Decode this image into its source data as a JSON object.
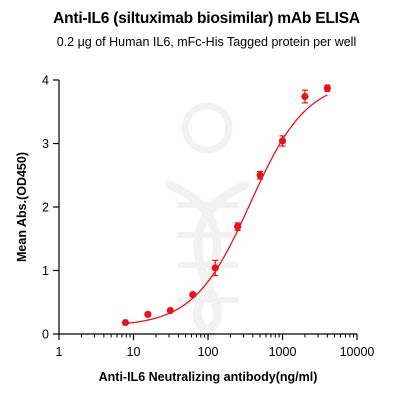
{
  "title": "Anti-IL6 (siltuximab biosimilar) mAb ELISA",
  "subtitle": "0.2 μg of Human IL6, mFc-His Tagged protein per well",
  "colors": {
    "series": "#e8141b",
    "axis": "#000000",
    "watermark": "#f2f2f2"
  },
  "chart_data": {
    "type": "scatter",
    "xlabel": "Anti-IL6 Neutralizing antibody(ng/ml)",
    "ylabel": "Mean Abs.(OD450)",
    "xscale": "log",
    "xlim": [
      1,
      10000
    ],
    "ylim": [
      0,
      4
    ],
    "x_ticks": [
      1,
      10,
      100,
      1000,
      10000
    ],
    "x_tick_labels": [
      "1",
      "10",
      "100",
      "1000",
      "10000"
    ],
    "y_ticks": [
      0,
      1,
      2,
      3,
      4
    ],
    "y_tick_labels": [
      "0",
      "1",
      "2",
      "3",
      "4"
    ],
    "grid": false,
    "series": [
      {
        "x": [
          7.8,
          15.6,
          31.25,
          62.5,
          125,
          250,
          500,
          1000,
          2000,
          4000
        ],
        "y": [
          0.18,
          0.31,
          0.37,
          0.62,
          1.04,
          1.69,
          2.5,
          3.04,
          3.74,
          3.87
        ],
        "err": [
          0.02,
          0.02,
          0.02,
          0.03,
          0.12,
          0.06,
          0.06,
          0.08,
          0.1,
          0.05
        ]
      }
    ],
    "fit": {
      "model": "4PL",
      "bottom": 0.12,
      "top": 4.0,
      "ec50": 370,
      "hill": 1.15
    }
  }
}
